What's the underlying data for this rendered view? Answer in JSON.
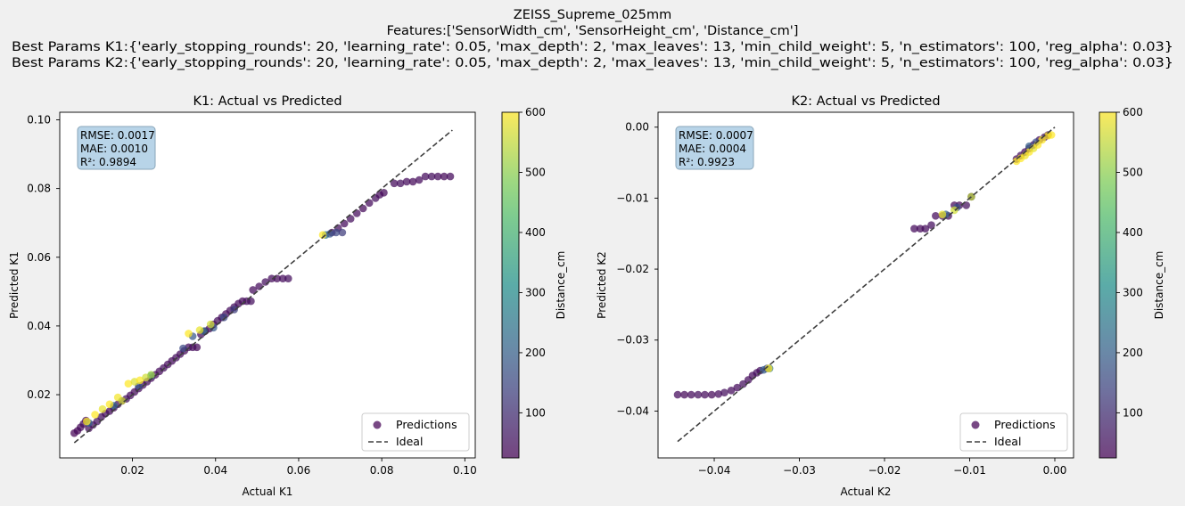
{
  "figure": {
    "suptitle_lines": [
      "ZEISS_Supreme_025mm",
      "Features:['SensorWidth_cm', 'SensorHeight_cm', 'Distance_cm']",
      "Best Params K1:{'early_stopping_rounds': 20, 'learning_rate': 0.05, 'max_depth': 2, 'max_leaves': 13, 'min_child_weight': 5, 'n_estimators': 100, 'reg_alpha': 0.03}",
      "Best Params K2:{'early_stopping_rounds': 20, 'learning_rate': 0.05, 'max_depth': 2, 'max_leaves': 13, 'min_child_weight': 5, 'n_estimators': 100, 'reg_alpha': 0.03}"
    ],
    "colors": {
      "background": "#f0f0f0",
      "axes_bg": "#ffffff",
      "ideal_line": "#404040",
      "stats_box": "#b8d4e8"
    },
    "colormap": "viridis"
  },
  "chart_data": [
    {
      "type": "scatter",
      "title": "K1: Actual vs Predicted",
      "xlabel": "Actual K1",
      "ylabel": "Predicted K1",
      "xlim": [
        0.0025,
        0.1025
      ],
      "ylim": [
        0.0016,
        0.1022
      ],
      "xticks": [
        0.02,
        0.04,
        0.06,
        0.08,
        0.1
      ],
      "xtick_labels": [
        "0.02",
        "0.04",
        "0.06",
        "0.08",
        "0.10"
      ],
      "yticks": [
        0.02,
        0.04,
        0.06,
        0.08,
        0.1
      ],
      "ytick_labels": [
        "0.02",
        "0.04",
        "0.06",
        "0.08",
        "0.10"
      ],
      "stats": [
        "RMSE: 0.0017",
        "MAE: 0.0010",
        "R²: 0.9894"
      ],
      "legend": {
        "placement": "lower-right",
        "entries": [
          "Predictions",
          "Ideal"
        ]
      },
      "ideal_line": {
        "x": [
          0.006,
          0.097
        ],
        "y": [
          0.006,
          0.097
        ]
      },
      "colorbar": {
        "label": "Distance_cm",
        "range": [
          25,
          600
        ],
        "ticks": [
          100,
          200,
          300,
          400,
          500,
          600
        ],
        "tick_labels": [
          "100",
          "200",
          "300",
          "400",
          "500",
          "600"
        ]
      },
      "series": [
        {
          "name": "Predictions",
          "points": [
            [
              0.006,
              0.0088,
              25
            ],
            [
              0.0068,
              0.0095,
              30
            ],
            [
              0.0075,
              0.0105,
              35
            ],
            [
              0.0082,
              0.0115,
              40
            ],
            [
              0.0088,
              0.0125,
              30
            ],
            [
              0.0095,
              0.0102,
              40
            ],
            [
              0.0105,
              0.0112,
              45
            ],
            [
              0.0115,
              0.0122,
              50
            ],
            [
              0.0125,
              0.0135,
              45
            ],
            [
              0.0135,
              0.0145,
              40
            ],
            [
              0.0145,
              0.0152,
              40
            ],
            [
              0.0155,
              0.0162,
              35
            ],
            [
              0.0165,
              0.0172,
              45
            ],
            [
              0.0175,
              0.0182,
              40
            ],
            [
              0.0185,
              0.0188,
              50
            ],
            [
              0.0195,
              0.0198,
              40
            ],
            [
              0.0205,
              0.0208,
              35
            ],
            [
              0.0215,
              0.0218,
              40
            ],
            [
              0.0225,
              0.0228,
              45
            ],
            [
              0.0235,
              0.0238,
              40
            ],
            [
              0.0245,
              0.0248,
              40
            ],
            [
              0.0255,
              0.0258,
              35
            ],
            [
              0.0265,
              0.0268,
              40
            ],
            [
              0.0275,
              0.0278,
              45
            ],
            [
              0.0285,
              0.0288,
              40
            ],
            [
              0.0295,
              0.0298,
              40
            ],
            [
              0.0305,
              0.0308,
              45
            ],
            [
              0.0315,
              0.0318,
              40
            ],
            [
              0.0325,
              0.0328,
              35
            ],
            [
              0.0335,
              0.0338,
              40
            ],
            [
              0.0345,
              0.0338,
              40
            ],
            [
              0.0355,
              0.0338,
              35
            ],
            [
              0.0365,
              0.0375,
              40
            ],
            [
              0.0375,
              0.0385,
              45
            ],
            [
              0.0385,
              0.0392,
              40
            ],
            [
              0.0395,
              0.0405,
              40
            ],
            [
              0.0405,
              0.0415,
              45
            ],
            [
              0.0415,
              0.0425,
              40
            ],
            [
              0.0425,
              0.0435,
              35
            ],
            [
              0.0435,
              0.0445,
              40
            ],
            [
              0.0445,
              0.0455,
              45
            ],
            [
              0.0455,
              0.0465,
              40
            ],
            [
              0.0465,
              0.0472,
              35
            ],
            [
              0.0475,
              0.0472,
              40
            ],
            [
              0.0485,
              0.0472,
              45
            ],
            [
              0.049,
              0.0505,
              40
            ],
            [
              0.0505,
              0.0515,
              40
            ],
            [
              0.052,
              0.0528,
              45
            ],
            [
              0.0535,
              0.0538,
              40
            ],
            [
              0.0548,
              0.0538,
              35
            ],
            [
              0.0562,
              0.0538,
              40
            ],
            [
              0.0575,
              0.0538,
              45
            ],
            [
              0.068,
              0.0672,
              40
            ],
            [
              0.0695,
              0.0685,
              45
            ],
            [
              0.071,
              0.0698,
              40
            ],
            [
              0.0725,
              0.0712,
              45
            ],
            [
              0.074,
              0.0728,
              40
            ],
            [
              0.0755,
              0.0742,
              35
            ],
            [
              0.077,
              0.0758,
              40
            ],
            [
              0.0785,
              0.0772,
              45
            ],
            [
              0.0795,
              0.0782,
              40
            ],
            [
              0.0805,
              0.0788,
              35
            ],
            [
              0.083,
              0.0815,
              40
            ],
            [
              0.0845,
              0.0815,
              45
            ],
            [
              0.086,
              0.082,
              40
            ],
            [
              0.0875,
              0.082,
              35
            ],
            [
              0.089,
              0.0825,
              40
            ],
            [
              0.0905,
              0.0835,
              40
            ],
            [
              0.092,
              0.0835,
              45
            ],
            [
              0.0935,
              0.0835,
              40
            ],
            [
              0.095,
              0.0835,
              35
            ],
            [
              0.0965,
              0.0835,
              40
            ],
            [
              0.0322,
              0.0335,
              150
            ],
            [
              0.0345,
              0.037,
              180
            ],
            [
              0.0372,
              0.0385,
              220
            ],
            [
              0.0395,
              0.0395,
              180
            ],
            [
              0.042,
              0.0425,
              150
            ],
            [
              0.0445,
              0.0448,
              130
            ],
            [
              0.0665,
              0.0665,
              250
            ],
            [
              0.0675,
              0.0668,
              180
            ],
            [
              0.069,
              0.0672,
              150
            ],
            [
              0.0705,
              0.0672,
              130
            ],
            [
              0.0095,
              0.0118,
              200
            ],
            [
              0.0155,
              0.0168,
              220
            ],
            [
              0.0215,
              0.0225,
              180
            ],
            [
              0.0245,
              0.0255,
              250
            ],
            [
              0.009,
              0.0122,
              600
            ],
            [
              0.011,
              0.0142,
              600
            ],
            [
              0.0128,
              0.0158,
              580
            ],
            [
              0.0145,
              0.0172,
              600
            ],
            [
              0.0165,
              0.0192,
              590
            ],
            [
              0.0175,
              0.0182,
              560
            ],
            [
              0.019,
              0.0232,
              600
            ],
            [
              0.0205,
              0.0238,
              570
            ],
            [
              0.0218,
              0.0242,
              600
            ],
            [
              0.0232,
              0.025,
              560
            ],
            [
              0.0245,
              0.0258,
              520
            ],
            [
              0.0335,
              0.0378,
              600
            ],
            [
              0.0362,
              0.0388,
              580
            ],
            [
              0.0388,
              0.0405,
              560
            ],
            [
              0.0658,
              0.0665,
              600
            ]
          ]
        }
      ]
    },
    {
      "type": "scatter",
      "title": "K2: Actual vs Predicted",
      "xlabel": "Actual K2",
      "ylabel": "Predicted K2",
      "xlim": [
        -0.0466,
        0.0022
      ],
      "ylim": [
        -0.0466,
        0.0021
      ],
      "xticks": [
        -0.04,
        -0.03,
        -0.02,
        -0.01,
        0.0
      ],
      "xtick_labels": [
        "−0.04",
        "−0.03",
        "−0.02",
        "−0.01",
        "0.00"
      ],
      "yticks": [
        -0.04,
        -0.03,
        -0.02,
        -0.01,
        0.0
      ],
      "ytick_labels": [
        "−0.04",
        "−0.03",
        "−0.02",
        "−0.01",
        "0.00"
      ],
      "stats": [
        "RMSE: 0.0007",
        "MAE: 0.0004",
        "R²: 0.9923"
      ],
      "legend": {
        "placement": "lower-right",
        "entries": [
          "Predictions",
          "Ideal"
        ]
      },
      "ideal_line": {
        "x": [
          -0.0443,
          0.0
        ],
        "y": [
          -0.0443,
          0.0
        ]
      },
      "colorbar": {
        "label": "Distance_cm",
        "range": [
          25,
          600
        ],
        "ticks": [
          100,
          200,
          300,
          400,
          500,
          600
        ],
        "tick_labels": [
          "100",
          "200",
          "300",
          "400",
          "500",
          "600"
        ]
      },
      "series": [
        {
          "name": "Predictions",
          "points": [
            [
              -0.0443,
              -0.0377,
              40
            ],
            [
              -0.0435,
              -0.0377,
              35
            ],
            [
              -0.0427,
              -0.0377,
              40
            ],
            [
              -0.0419,
              -0.0377,
              45
            ],
            [
              -0.0411,
              -0.0377,
              40
            ],
            [
              -0.0403,
              -0.0377,
              35
            ],
            [
              -0.0395,
              -0.0376,
              40
            ],
            [
              -0.0388,
              -0.0374,
              45
            ],
            [
              -0.038,
              -0.0371,
              40
            ],
            [
              -0.0373,
              -0.0367,
              40
            ],
            [
              -0.0366,
              -0.0362,
              45
            ],
            [
              -0.036,
              -0.0356,
              40
            ],
            [
              -0.0355,
              -0.035,
              40
            ],
            [
              -0.035,
              -0.0346,
              45
            ],
            [
              -0.0346,
              -0.0343,
              40
            ],
            [
              -0.0165,
              -0.0143,
              40
            ],
            [
              -0.0158,
              -0.0143,
              35
            ],
            [
              -0.0152,
              -0.0143,
              40
            ],
            [
              -0.0145,
              -0.0138,
              45
            ],
            [
              -0.014,
              -0.0125,
              40
            ],
            [
              -0.0132,
              -0.0125,
              45
            ],
            [
              -0.0125,
              -0.0125,
              40
            ],
            [
              -0.0118,
              -0.011,
              35
            ],
            [
              -0.0112,
              -0.011,
              40
            ],
            [
              -0.0104,
              -0.011,
              45
            ],
            [
              -0.0098,
              -0.0098,
              40
            ],
            [
              -0.0045,
              -0.0045,
              40
            ],
            [
              -0.004,
              -0.004,
              45
            ],
            [
              -0.0035,
              -0.0035,
              40
            ],
            [
              -0.003,
              -0.003,
              35
            ],
            [
              -0.0025,
              -0.0025,
              40
            ],
            [
              -0.0018,
              -0.0018,
              40
            ],
            [
              -0.0012,
              -0.0014,
              45
            ],
            [
              -0.0008,
              -0.0011,
              40
            ],
            [
              -0.0342,
              -0.0342,
              200
            ],
            [
              -0.0338,
              -0.034,
              160
            ],
            [
              -0.0335,
              -0.034,
              250
            ],
            [
              -0.0128,
              -0.0123,
              200
            ],
            [
              -0.0115,
              -0.0113,
              170
            ],
            [
              -0.003,
              -0.0027,
              200
            ],
            [
              -0.0022,
              -0.0021,
              160
            ],
            [
              -0.0336,
              -0.034,
              600
            ],
            [
              -0.0132,
              -0.0123,
              580
            ],
            [
              -0.0118,
              -0.0117,
              560
            ],
            [
              -0.0098,
              -0.0098,
              540
            ],
            [
              -0.0045,
              -0.0048,
              600
            ],
            [
              -0.004,
              -0.0044,
              600
            ],
            [
              -0.0035,
              -0.004,
              590
            ],
            [
              -0.003,
              -0.0035,
              600
            ],
            [
              -0.0025,
              -0.003,
              580
            ],
            [
              -0.002,
              -0.0025,
              600
            ],
            [
              -0.0015,
              -0.0018,
              600
            ],
            [
              -0.0008,
              -0.0012,
              600
            ],
            [
              -0.0004,
              -0.0011,
              600
            ]
          ]
        }
      ]
    }
  ]
}
